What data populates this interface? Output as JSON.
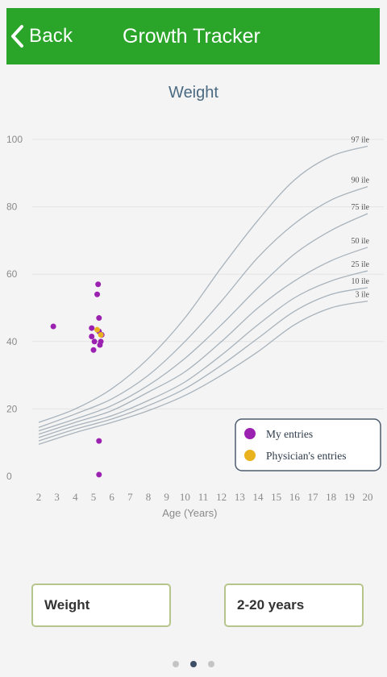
{
  "header": {
    "back_label": "Back",
    "title": "Growth Tracker",
    "background": "#2aa52a"
  },
  "chart_data": {
    "type": "scatter",
    "title": "Weight",
    "xlabel": "Age (Years)",
    "ylabel": "",
    "xlim": [
      2,
      20
    ],
    "ylim": [
      0,
      100
    ],
    "x_ticks": [
      2,
      3,
      4,
      5,
      6,
      7,
      8,
      9,
      10,
      11,
      12,
      13,
      14,
      15,
      16,
      17,
      18,
      19,
      20
    ],
    "y_ticks": [
      0,
      20,
      40,
      60,
      80,
      100
    ],
    "grid": true,
    "legend_position": "bottom-right",
    "percentile_curves": [
      {
        "label": "97 ile",
        "points": [
          [
            2,
            16
          ],
          [
            4,
            20
          ],
          [
            6,
            26
          ],
          [
            8,
            35
          ],
          [
            10,
            47
          ],
          [
            12,
            62
          ],
          [
            14,
            76
          ],
          [
            16,
            88
          ],
          [
            18,
            95
          ],
          [
            20,
            98
          ]
        ]
      },
      {
        "label": "90 ile",
        "points": [
          [
            2,
            14.5
          ],
          [
            4,
            18.5
          ],
          [
            6,
            23
          ],
          [
            8,
            30
          ],
          [
            10,
            40
          ],
          [
            12,
            52
          ],
          [
            14,
            65
          ],
          [
            16,
            75
          ],
          [
            18,
            82
          ],
          [
            20,
            86
          ]
        ]
      },
      {
        "label": "75 ile",
        "points": [
          [
            2,
            13.5
          ],
          [
            4,
            17
          ],
          [
            6,
            21
          ],
          [
            8,
            27
          ],
          [
            10,
            35
          ],
          [
            12,
            45
          ],
          [
            14,
            56
          ],
          [
            16,
            66
          ],
          [
            18,
            73
          ],
          [
            20,
            78
          ]
        ]
      },
      {
        "label": "50 ile",
        "points": [
          [
            2,
            12.5
          ],
          [
            4,
            16
          ],
          [
            6,
            19.5
          ],
          [
            8,
            25
          ],
          [
            10,
            31
          ],
          [
            12,
            40
          ],
          [
            14,
            50
          ],
          [
            16,
            58
          ],
          [
            18,
            64
          ],
          [
            20,
            68
          ]
        ]
      },
      {
        "label": "25 ile",
        "points": [
          [
            2,
            11.5
          ],
          [
            4,
            15
          ],
          [
            6,
            18
          ],
          [
            8,
            22.5
          ],
          [
            10,
            28
          ],
          [
            12,
            36
          ],
          [
            14,
            45
          ],
          [
            16,
            53
          ],
          [
            18,
            58
          ],
          [
            20,
            61
          ]
        ]
      },
      {
        "label": "10 ile",
        "points": [
          [
            2,
            10.5
          ],
          [
            4,
            14
          ],
          [
            6,
            17
          ],
          [
            8,
            21
          ],
          [
            10,
            26
          ],
          [
            12,
            33
          ],
          [
            14,
            41
          ],
          [
            16,
            49
          ],
          [
            18,
            54
          ],
          [
            20,
            56
          ]
        ]
      },
      {
        "label": "3 ile",
        "points": [
          [
            2,
            9.5
          ],
          [
            4,
            13
          ],
          [
            6,
            16
          ],
          [
            8,
            19.5
          ],
          [
            10,
            24
          ],
          [
            12,
            30
          ],
          [
            14,
            37
          ],
          [
            16,
            45
          ],
          [
            18,
            50
          ],
          [
            20,
            52
          ]
        ]
      }
    ],
    "series": [
      {
        "name": "My entries",
        "color": "#9b22b0",
        "points": [
          [
            2.8,
            44.5
          ],
          [
            4.9,
            44
          ],
          [
            4.9,
            41.5
          ],
          [
            5,
            37.5
          ],
          [
            5.05,
            40
          ],
          [
            5.2,
            54
          ],
          [
            5.25,
            57
          ],
          [
            5.3,
            47
          ],
          [
            5.3,
            43
          ],
          [
            5.35,
            39
          ],
          [
            5.4,
            40
          ],
          [
            5.45,
            42
          ],
          [
            5.3,
            10.5
          ],
          [
            5.3,
            0.5
          ]
        ]
      },
      {
        "name": "Physician's entries",
        "color": "#e9b21f",
        "points": [
          [
            5.2,
            43.5
          ],
          [
            5.4,
            42
          ]
        ]
      }
    ]
  },
  "selectors": {
    "metric": "Weight",
    "range": "2-20 years"
  },
  "pager": {
    "count": 3,
    "active": 1
  }
}
